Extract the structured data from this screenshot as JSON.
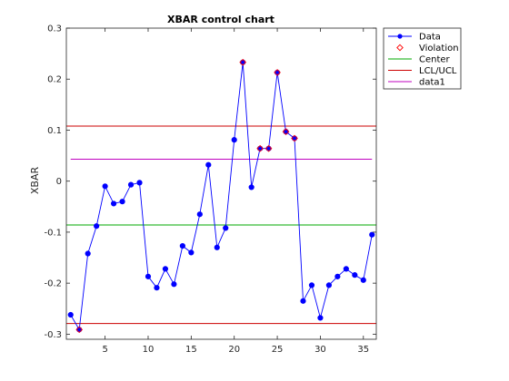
{
  "chart_data": {
    "type": "line",
    "title": "XBAR control chart",
    "xlabel": "",
    "ylabel": "XBAR",
    "xlim": [
      0.5,
      36.5
    ],
    "ylim": [
      -0.31,
      0.3
    ],
    "xticks": [
      5,
      10,
      15,
      20,
      25,
      30,
      35
    ],
    "yticks": [
      -0.3,
      -0.2,
      -0.1,
      0,
      0.1,
      0.2,
      0.3
    ],
    "ytick_labels": [
      "-0.3",
      "-0.2",
      "-0.1",
      "0",
      "0.1",
      "0.2",
      "0.3"
    ],
    "grid": false,
    "legend_position": "outside-top-right",
    "series": [
      {
        "name": "Data",
        "color": "#0000ff",
        "marker": "filled-circle",
        "x": [
          1,
          2,
          3,
          4,
          5,
          6,
          7,
          8,
          9,
          10,
          11,
          12,
          13,
          14,
          15,
          16,
          17,
          18,
          19,
          20,
          21,
          22,
          23,
          24,
          25,
          26,
          27,
          28,
          29,
          30,
          31,
          32,
          33,
          34,
          35,
          36
        ],
        "y": [
          -0.262,
          -0.291,
          -0.142,
          -0.088,
          -0.01,
          -0.044,
          -0.04,
          -0.007,
          -0.003,
          -0.187,
          -0.209,
          -0.172,
          -0.202,
          -0.127,
          -0.14,
          -0.065,
          0.032,
          -0.13,
          -0.092,
          0.081,
          0.233,
          -0.012,
          0.064,
          0.064,
          0.213,
          0.097,
          0.084,
          -0.235,
          -0.204,
          -0.268,
          -0.204,
          -0.187,
          -0.172,
          -0.184,
          -0.194,
          -0.105
        ]
      },
      {
        "name": "Violation",
        "color": "#ff0000",
        "marker": "open-diamond",
        "x": [
          2,
          21,
          23,
          24,
          25,
          26,
          27
        ],
        "y": [
          -0.291,
          0.233,
          0.064,
          0.064,
          0.213,
          0.097,
          0.084
        ]
      },
      {
        "name": "Center",
        "color": "#00aa00",
        "type": "hline",
        "value": -0.086
      },
      {
        "name": "LCL/UCL",
        "color": "#cc0000",
        "type": "hlines",
        "values": [
          -0.279,
          0.108
        ]
      },
      {
        "name": "data1",
        "color": "#bf00bf",
        "type": "hline",
        "value": 0.043
      }
    ]
  }
}
